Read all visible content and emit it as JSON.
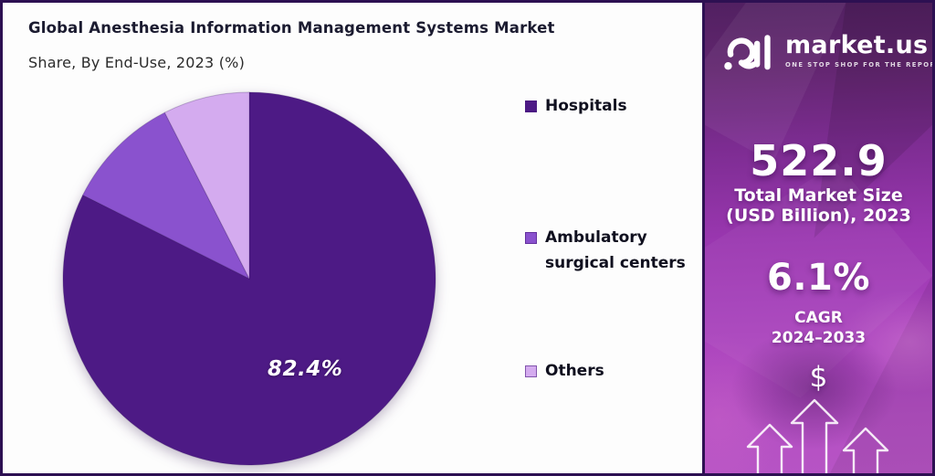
{
  "header": {
    "title": "Global Anesthesia Information Management Systems Market",
    "subtitle": "Share, By End-Use, 2023 (%)"
  },
  "chart_data": {
    "type": "pie",
    "title": "Global Anesthesia Information Management Systems Market",
    "subtitle": "Share, By End-Use, 2023 (%)",
    "categories": [
      "Hospitals",
      "Ambulatory surgical centers",
      "Others"
    ],
    "values": [
      82.4,
      10.1,
      7.5
    ],
    "slice_labels": [
      "82.4%",
      "",
      ""
    ],
    "colors": [
      "#4d1a85",
      "#8a52ce",
      "#d4abef"
    ],
    "start_angle_deg": 0,
    "direction": "clockwise",
    "legend_position": "right",
    "note": "Only the Hospitals slice is labeled (82.4%); other slice values estimated from arc angles."
  },
  "legend": {
    "items": [
      {
        "label": "Hospitals",
        "color": "#4d1a85"
      },
      {
        "label": "Ambulatory surgical centers",
        "color": "#8a52ce"
      },
      {
        "label": "Others",
        "color": "#d4abef"
      }
    ]
  },
  "sidebar": {
    "brand": {
      "name": "market.us",
      "tagline": "ONE STOP SHOP FOR THE REPORTS"
    },
    "stats": [
      {
        "value": "522.9",
        "label_line1": "Total Market Size",
        "label_line2": "(USD Billion), 2023"
      },
      {
        "value": "6.1%",
        "label_line1": "CAGR",
        "label_line2": "2024–2033"
      }
    ],
    "dollar_sign": "$",
    "colors": {
      "top": "#512061",
      "middle": "#9a37b0",
      "bottom": "#b754c5"
    }
  }
}
